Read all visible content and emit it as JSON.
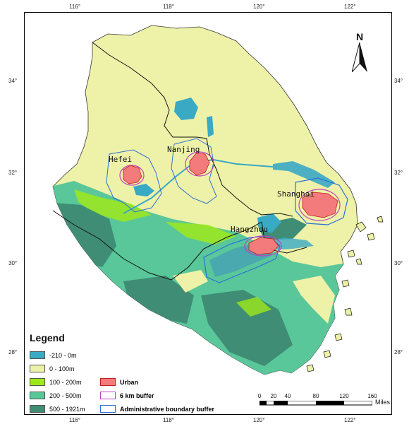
{
  "graticule": {
    "lon_labels": [
      "116°",
      "118°",
      "120°",
      "122°"
    ],
    "lat_labels": [
      "34°",
      "32°",
      "30°",
      "28°"
    ]
  },
  "cities": [
    "Hefei",
    "Nanjing",
    "Shanghai",
    "Hangzhou"
  ],
  "north_arrow": {
    "letter": "N"
  },
  "legend": {
    "title": "Legend",
    "elevation": [
      {
        "label": "-210 - 0m",
        "color": "#3aa9c4"
      },
      {
        "label": "0 - 100m",
        "color": "#eef2a8"
      },
      {
        "label": "100 - 200m",
        "color": "#9ee81c"
      },
      {
        "label": "200 - 500m",
        "color": "#59c79a"
      },
      {
        "label": "500 - 1921m",
        "color": "#3f8d74"
      }
    ],
    "features": [
      {
        "label": "Urban",
        "color": "#f37b7b"
      },
      {
        "label": "6 km buffer",
        "color": "#c040c0"
      },
      {
        "label": "Administrative boundary buffer",
        "color": "#2d6fd8"
      }
    ]
  },
  "scale_bar": {
    "labels": [
      "0",
      "20",
      "40",
      "80",
      "120",
      "160"
    ],
    "unit": "Miles"
  }
}
